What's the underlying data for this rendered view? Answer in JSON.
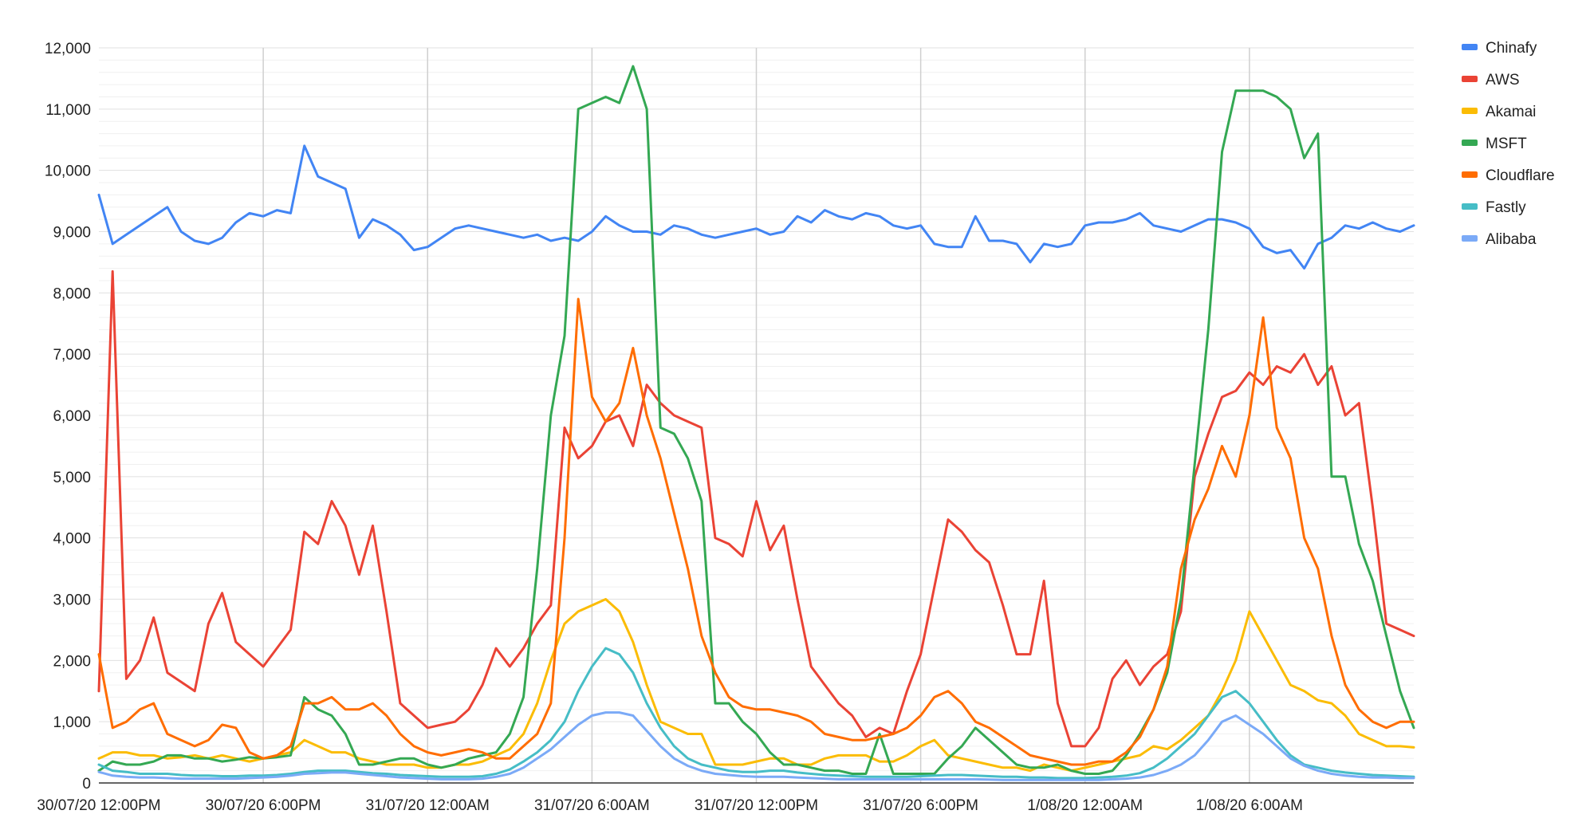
{
  "chart_data": {
    "type": "line",
    "title": "",
    "xlabel": "",
    "ylabel": "",
    "ylim": [
      0,
      12000
    ],
    "yticks": [
      0,
      1000,
      2000,
      3000,
      4000,
      5000,
      6000,
      7000,
      8000,
      9000,
      10000,
      11000,
      12000
    ],
    "ytick_labels": [
      "0",
      "1,000",
      "2,000",
      "3,000",
      "4,000",
      "5,000",
      "6,000",
      "7,000",
      "8,000",
      "9,000",
      "10,000",
      "11,000",
      "12,000"
    ],
    "xlim_hours": [
      0,
      48
    ],
    "xticks_hours": [
      0,
      6,
      12,
      18,
      24,
      30,
      36,
      42
    ],
    "xtick_labels": [
      "30/07/20 12:00PM",
      "30/07/20 6:00PM",
      "31/07/20 12:00AM",
      "31/07/20 6:00AM",
      "31/07/20 12:00PM",
      "31/07/20 6:00PM",
      "1/08/20 12:00AM",
      "1/08/20 6:00AM"
    ],
    "x_hours": [
      0,
      0.5,
      1,
      1.5,
      2,
      2.5,
      3,
      3.5,
      4,
      4.5,
      5,
      5.5,
      6,
      6.5,
      7,
      7.5,
      8,
      8.5,
      9,
      9.5,
      10,
      10.5,
      11,
      11.5,
      12,
      12.5,
      13,
      13.5,
      14,
      14.5,
      15,
      15.5,
      16,
      16.5,
      17,
      17.5,
      18,
      18.5,
      19,
      19.5,
      20,
      20.5,
      21,
      21.5,
      22,
      22.5,
      23,
      23.5,
      24,
      24.5,
      25,
      25.5,
      26,
      26.5,
      27,
      27.5,
      28,
      28.5,
      29,
      29.5,
      30,
      30.5,
      31,
      31.5,
      32,
      32.5,
      33,
      33.5,
      34,
      34.5,
      35,
      35.5,
      36,
      36.5,
      37,
      37.5,
      38,
      38.5,
      39,
      39.5,
      40,
      40.5,
      41,
      41.5,
      42,
      42.5,
      43,
      43.5,
      44,
      44.5,
      45,
      45.5,
      46,
      46.5,
      47,
      47.5,
      48
    ],
    "legend_position": "right",
    "grid": true,
    "series": [
      {
        "name": "Chinafy",
        "color": "#4285f4",
        "values": [
          9600,
          8800,
          8950,
          9100,
          9250,
          9400,
          9000,
          8850,
          8800,
          8900,
          9150,
          9300,
          9250,
          9350,
          9300,
          10400,
          9900,
          9800,
          9700,
          8900,
          9200,
          9100,
          8950,
          8700,
          8750,
          8900,
          9050,
          9100,
          9050,
          9000,
          8950,
          8900,
          8950,
          8850,
          8900,
          8850,
          9000,
          9250,
          9100,
          9000,
          9000,
          8950,
          9100,
          9050,
          8950,
          8900,
          8950,
          9000,
          9050,
          8950,
          9000,
          9250,
          9150,
          9350,
          9250,
          9200,
          9300,
          9250,
          9100,
          9050,
          9100,
          8800,
          8750,
          8750,
          9250,
          8850,
          8850,
          8800,
          8500,
          8800,
          8750,
          8800,
          9100,
          9150,
          9150,
          9200,
          9300,
          9100,
          9050,
          9000,
          9100,
          9200,
          9200,
          9150,
          9050,
          8750,
          8650,
          8700,
          8400,
          8800,
          8900,
          9100,
          9050,
          9150,
          9050,
          9000,
          9100
        ]
      },
      {
        "name": "AWS",
        "color": "#ea4335",
        "values": [
          1500,
          8350,
          1700,
          2000,
          2700,
          1800,
          1650,
          1500,
          2600,
          3100,
          2300,
          2100,
          1900,
          2200,
          2500,
          4100,
          3900,
          4600,
          4200,
          3400,
          4200,
          2800,
          1300,
          1100,
          900,
          950,
          1000,
          1200,
          1600,
          2200,
          1900,
          2200,
          2600,
          2900,
          5800,
          5300,
          5500,
          5900,
          6000,
          5500,
          6500,
          6200,
          6000,
          5900,
          5800,
          4000,
          3900,
          3700,
          4600,
          3800,
          4200,
          3000,
          1900,
          1600,
          1300,
          1100,
          750,
          900,
          800,
          1500,
          2100,
          3200,
          4300,
          4100,
          3800,
          3600,
          2900,
          2100,
          2100,
          3300,
          1300,
          600,
          600,
          900,
          1700,
          2000,
          1600,
          1900,
          2100,
          2800,
          5000,
          5700,
          6300,
          6400,
          6700,
          6500,
          6800,
          6700,
          7000,
          6500,
          6800,
          6000,
          6200,
          4500,
          2600,
          2500,
          2400
        ]
      },
      {
        "name": "Akamai",
        "color": "#fbbc04",
        "values": [
          400,
          500,
          500,
          450,
          450,
          400,
          420,
          450,
          400,
          450,
          400,
          350,
          400,
          450,
          500,
          700,
          600,
          500,
          500,
          400,
          350,
          300,
          300,
          300,
          250,
          250,
          300,
          300,
          350,
          450,
          550,
          800,
          1300,
          2000,
          2600,
          2800,
          2900,
          3000,
          2800,
          2300,
          1600,
          1000,
          900,
          800,
          800,
          300,
          300,
          300,
          350,
          400,
          400,
          300,
          300,
          400,
          450,
          450,
          450,
          350,
          350,
          450,
          600,
          700,
          450,
          400,
          350,
          300,
          250,
          250,
          200,
          300,
          250,
          200,
          250,
          300,
          350,
          400,
          450,
          600,
          550,
          700,
          900,
          1100,
          1500,
          2000,
          2800,
          2400,
          2000,
          1600,
          1500,
          1350,
          1300,
          1100,
          800,
          700,
          600,
          600,
          580
        ]
      },
      {
        "name": "MSFT",
        "color": "#34a853",
        "values": [
          200,
          350,
          300,
          300,
          350,
          450,
          450,
          400,
          400,
          350,
          380,
          420,
          400,
          420,
          450,
          1400,
          1200,
          1100,
          800,
          300,
          300,
          350,
          400,
          400,
          300,
          250,
          300,
          400,
          450,
          500,
          800,
          1400,
          3500,
          6000,
          7300,
          11000,
          11100,
          11200,
          11100,
          11700,
          11000,
          5800,
          5700,
          5300,
          4600,
          1300,
          1300,
          1000,
          800,
          500,
          300,
          300,
          250,
          200,
          200,
          150,
          150,
          800,
          150,
          150,
          150,
          150,
          400,
          600,
          900,
          700,
          500,
          300,
          250,
          250,
          300,
          200,
          150,
          150,
          200,
          450,
          800,
          1200,
          1800,
          3000,
          5200,
          7400,
          10300,
          11300,
          11300,
          11300,
          11200,
          11000,
          10200,
          10600,
          5000,
          5000,
          3900,
          3300,
          2400,
          1500,
          900
        ]
      },
      {
        "name": "Cloudflare",
        "color": "#ff6d01",
        "values": [
          2100,
          900,
          1000,
          1200,
          1300,
          800,
          700,
          600,
          700,
          950,
          900,
          500,
          400,
          450,
          600,
          1300,
          1300,
          1400,
          1200,
          1200,
          1300,
          1100,
          800,
          600,
          500,
          450,
          500,
          550,
          500,
          400,
          400,
          600,
          800,
          1300,
          4000,
          7900,
          6300,
          5900,
          6200,
          7100,
          6000,
          5300,
          4400,
          3500,
          2400,
          1800,
          1400,
          1250,
          1200,
          1200,
          1150,
          1100,
          1000,
          800,
          750,
          700,
          700,
          750,
          800,
          900,
          1100,
          1400,
          1500,
          1300,
          1000,
          900,
          750,
          600,
          450,
          400,
          350,
          300,
          300,
          350,
          350,
          500,
          750,
          1200,
          1900,
          3500,
          4300,
          4800,
          5500,
          5000,
          6000,
          7600,
          5800,
          5300,
          4000,
          3500,
          2400,
          1600,
          1200,
          1000,
          900,
          1000,
          1000
        ]
      },
      {
        "name": "Fastly",
        "color": "#46bdc6",
        "values": [
          300,
          200,
          180,
          150,
          150,
          150,
          130,
          120,
          120,
          110,
          110,
          120,
          120,
          130,
          150,
          180,
          200,
          200,
          200,
          180,
          160,
          150,
          130,
          120,
          110,
          100,
          100,
          100,
          110,
          150,
          220,
          350,
          500,
          700,
          1000,
          1500,
          1900,
          2200,
          2100,
          1800,
          1300,
          900,
          600,
          400,
          300,
          250,
          200,
          180,
          180,
          200,
          200,
          170,
          150,
          130,
          120,
          110,
          100,
          100,
          100,
          100,
          110,
          120,
          130,
          130,
          120,
          110,
          100,
          100,
          90,
          90,
          80,
          80,
          80,
          90,
          100,
          120,
          160,
          250,
          400,
          600,
          800,
          1100,
          1400,
          1500,
          1300,
          1000,
          700,
          450,
          300,
          250,
          200,
          170,
          150,
          130,
          120,
          110,
          100
        ]
      },
      {
        "name": "Alibaba",
        "color": "#7baaf7",
        "values": [
          180,
          120,
          100,
          90,
          90,
          80,
          70,
          70,
          70,
          70,
          70,
          80,
          90,
          100,
          120,
          150,
          160,
          170,
          170,
          150,
          130,
          110,
          90,
          80,
          70,
          60,
          60,
          60,
          70,
          100,
          150,
          250,
          400,
          550,
          750,
          950,
          1100,
          1150,
          1150,
          1100,
          850,
          600,
          400,
          280,
          200,
          150,
          130,
          110,
          100,
          100,
          100,
          90,
          80,
          70,
          60,
          60,
          60,
          60,
          60,
          60,
          60,
          60,
          60,
          60,
          60,
          55,
          50,
          50,
          50,
          50,
          50,
          50,
          50,
          50,
          60,
          70,
          90,
          130,
          200,
          300,
          450,
          700,
          1000,
          1100,
          950,
          800,
          600,
          400,
          280,
          200,
          150,
          120,
          100,
          90,
          90,
          80,
          80
        ]
      }
    ]
  }
}
